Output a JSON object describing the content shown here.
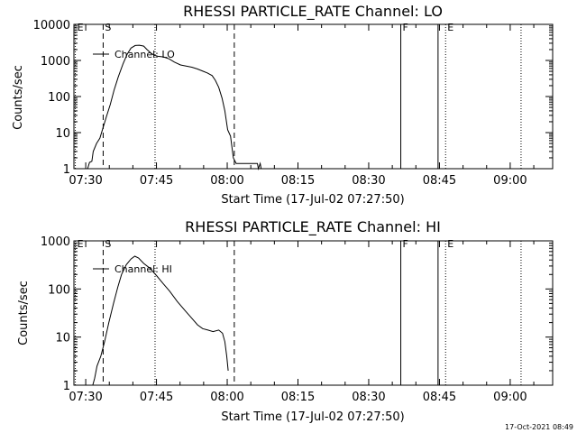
{
  "timestamp": "17-Oct-2021 08:49",
  "chart_data": [
    {
      "type": "line",
      "title": "RHESSI PARTICLE_RATE Channel: LO",
      "xlabel": "Start Time (17-Jul-02 07:27:50)",
      "ylabel": "Counts/sec",
      "yscale": "log",
      "xlim": [
        -2.5,
        99
      ],
      "ylim": [
        1,
        10000
      ],
      "xticks": [
        {
          "v": 0,
          "label": "07:30"
        },
        {
          "v": 15,
          "label": "07:45"
        },
        {
          "v": 30,
          "label": "08:00"
        },
        {
          "v": 45,
          "label": "08:15"
        },
        {
          "v": 60,
          "label": "08:30"
        },
        {
          "v": 75,
          "label": "08:45"
        },
        {
          "v": 90,
          "label": "09:00"
        }
      ],
      "yticks": [
        {
          "v": 1,
          "label": "1"
        },
        {
          "v": 10,
          "label": "10"
        },
        {
          "v": 100,
          "label": "100"
        },
        {
          "v": 1000,
          "label": "1000"
        },
        {
          "v": 10000,
          "label": "10000"
        }
      ],
      "legend": {
        "label": "Channel: LO",
        "position": "top-left"
      },
      "series": [
        {
          "name": "Channel: LO",
          "x": [
            0.4,
            0.8,
            1.3,
            1.6,
            2.3,
            3.0,
            3.7,
            4.4,
            5.2,
            6.0,
            6.9,
            7.9,
            8.8,
            9.6,
            10.5,
            11.4,
            12.3,
            13.0,
            13.8,
            14.5,
            15.3,
            16.5,
            17.7,
            18.8,
            20.1,
            21.3,
            22.5,
            23.7,
            24.9,
            25.8,
            26.8,
            27.5,
            28.2,
            28.9,
            29.5,
            30.1,
            30.7,
            31.3,
            31.9,
            32.7,
            33.4,
            34.6,
            35.9,
            36.4,
            36.6,
            37.0,
            37.2
          ],
          "y": [
            1,
            1.5,
            1.6,
            3,
            5,
            7,
            14,
            28,
            60,
            150,
            350,
            800,
            1500,
            2200,
            2600,
            2650,
            2500,
            2000,
            1600,
            1400,
            1300,
            1250,
            1100,
            900,
            750,
            700,
            650,
            580,
            500,
            450,
            380,
            280,
            180,
            90,
            40,
            12,
            8,
            2,
            1.4,
            1.4,
            1.4,
            1.4,
            1.4,
            1.4,
            1,
            1.4,
            1
          ]
        }
      ],
      "markers": [
        {
          "label": "E",
          "x": -2.2,
          "style": "dotted"
        },
        {
          "label": "S",
          "x": 3.7,
          "style": "dashed"
        },
        {
          "label": "",
          "x": 14.7,
          "style": "dotted"
        },
        {
          "label": "",
          "x": 31.5,
          "style": "dashed"
        },
        {
          "label": "F",
          "x": 66.8,
          "style": "solid"
        },
        {
          "label": "",
          "x": 74.7,
          "style": "solid"
        },
        {
          "label": "E",
          "x": 76.3,
          "style": "dotted"
        },
        {
          "label": "",
          "x": 92.3,
          "style": "dotted"
        }
      ]
    },
    {
      "type": "line",
      "title": "RHESSI PARTICLE_RATE Channel: HI",
      "xlabel": "Start Time (17-Jul-02 07:27:50)",
      "ylabel": "Counts/sec",
      "yscale": "log",
      "xlim": [
        -2.5,
        99
      ],
      "ylim": [
        1,
        1000
      ],
      "xticks": [
        {
          "v": 0,
          "label": "07:30"
        },
        {
          "v": 15,
          "label": "07:45"
        },
        {
          "v": 30,
          "label": "08:00"
        },
        {
          "v": 45,
          "label": "08:15"
        },
        {
          "v": 60,
          "label": "08:30"
        },
        {
          "v": 75,
          "label": "08:45"
        },
        {
          "v": 90,
          "label": "09:00"
        }
      ],
      "yticks": [
        {
          "v": 1,
          "label": "1"
        },
        {
          "v": 10,
          "label": "10"
        },
        {
          "v": 100,
          "label": "100"
        },
        {
          "v": 1000,
          "label": "1000"
        }
      ],
      "legend": {
        "label": "Channel: HI",
        "position": "top-left"
      },
      "series": [
        {
          "name": "Channel: HI",
          "x": [
            1.5,
            1.9,
            2.4,
            3.2,
            4.0,
            4.9,
            5.9,
            6.8,
            7.6,
            8.6,
            9.6,
            10.4,
            11.2,
            12.3,
            13.6,
            15.0,
            16.4,
            17.8,
            19.4,
            21.1,
            22.6,
            23.7,
            24.8,
            25.9,
            27.0,
            28.2,
            29.0,
            29.5,
            29.9,
            30.2
          ],
          "y": [
            1,
            1.4,
            2.5,
            4,
            8,
            20,
            50,
            110,
            200,
            320,
            420,
            480,
            440,
            340,
            270,
            190,
            130,
            90,
            55,
            35,
            24,
            18,
            15,
            14,
            13,
            14,
            12,
            8,
            4,
            2
          ]
        }
      ],
      "markers": [
        {
          "label": "E",
          "x": -2.2,
          "style": "dotted"
        },
        {
          "label": "S",
          "x": 3.7,
          "style": "dashed"
        },
        {
          "label": "",
          "x": 14.7,
          "style": "dotted"
        },
        {
          "label": "",
          "x": 31.5,
          "style": "dashed"
        },
        {
          "label": "F",
          "x": 66.8,
          "style": "solid"
        },
        {
          "label": "",
          "x": 74.7,
          "style": "solid"
        },
        {
          "label": "E",
          "x": 76.3,
          "style": "dotted"
        },
        {
          "label": "",
          "x": 92.3,
          "style": "dotted"
        }
      ]
    }
  ]
}
